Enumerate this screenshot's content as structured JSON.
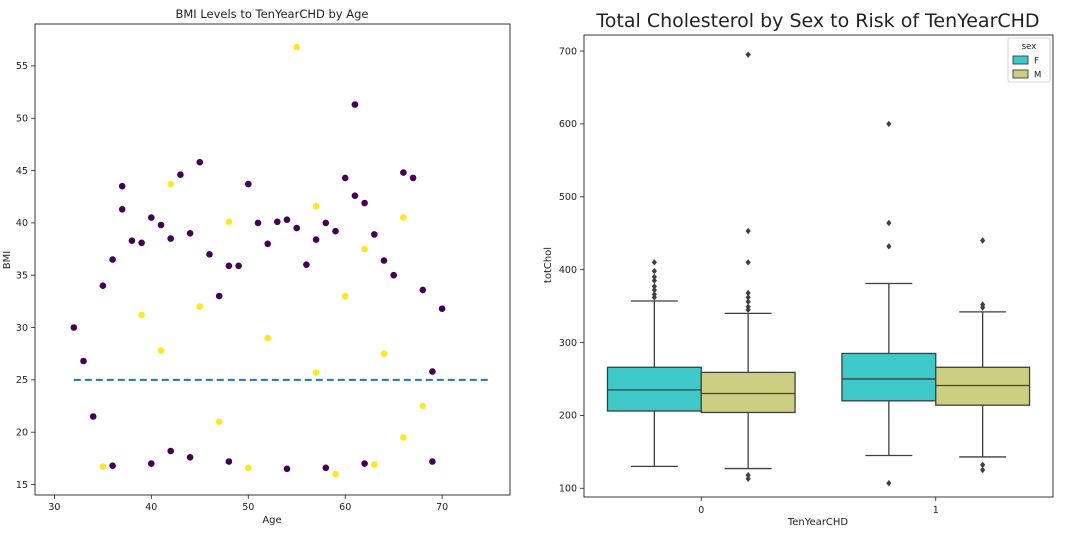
{
  "chart_data": [
    {
      "type": "scatter",
      "title": "BMI Levels to TenYearCHD by Age",
      "xlabel": "Age",
      "ylabel": "BMI",
      "xlim": [
        28,
        77
      ],
      "ylim": [
        14,
        59
      ],
      "xticks": [
        30,
        40,
        50,
        60,
        70
      ],
      "yticks": [
        15,
        20,
        25,
        30,
        35,
        40,
        45,
        50,
        55
      ],
      "grid": false,
      "reference_line": {
        "y": 25,
        "x_range": [
          32,
          75
        ],
        "style": "dashed",
        "color": "#1f77b4"
      },
      "series": [
        {
          "color": "#440154",
          "points": [
            [
              32,
              30.0
            ],
            [
              33,
              26.8
            ],
            [
              34,
              21.5
            ],
            [
              35,
              34.0
            ],
            [
              36,
              36.5
            ],
            [
              37,
              43.5
            ],
            [
              37,
              41.3
            ],
            [
              38,
              38.3
            ],
            [
              39,
              38.1
            ],
            [
              40,
              40.5
            ],
            [
              40,
              17.0
            ],
            [
              41,
              39.8
            ],
            [
              42,
              38.5
            ],
            [
              43,
              44.6
            ],
            [
              44,
              39.0
            ],
            [
              45,
              45.8
            ],
            [
              44,
              17.6
            ],
            [
              46,
              37.0
            ],
            [
              47,
              33.0
            ],
            [
              48,
              35.9
            ],
            [
              49,
              35.9
            ],
            [
              50,
              43.7
            ],
            [
              51,
              40.0
            ],
            [
              52,
              38.0
            ],
            [
              53,
              40.1
            ],
            [
              54,
              40.3
            ],
            [
              54,
              16.5
            ],
            [
              55,
              39.5
            ],
            [
              56,
              36.0
            ],
            [
              57,
              38.4
            ],
            [
              58,
              40.0
            ],
            [
              59,
              39.2
            ],
            [
              60,
              44.3
            ],
            [
              61,
              51.3
            ],
            [
              61,
              42.6
            ],
            [
              62,
              41.9
            ],
            [
              63,
              38.9
            ],
            [
              64,
              36.4
            ],
            [
              65,
              35.0
            ],
            [
              66,
              44.8
            ],
            [
              67,
              44.3
            ],
            [
              68,
              33.6
            ],
            [
              69,
              17.2
            ],
            [
              70,
              31.8
            ],
            [
              69,
              25.8
            ],
            [
              62,
              17.0
            ],
            [
              48,
              17.2
            ],
            [
              58,
              16.6
            ],
            [
              36,
              16.8
            ],
            [
              42,
              18.2
            ]
          ]
        },
        {
          "color": "#fde725",
          "points": [
            [
              35,
              16.7
            ],
            [
              39,
              31.2
            ],
            [
              42,
              43.7
            ],
            [
              48,
              40.1
            ],
            [
              50,
              16.6
            ],
            [
              55,
              56.8
            ],
            [
              57,
              41.6
            ],
            [
              59,
              16.0
            ],
            [
              62,
              37.5
            ],
            [
              63,
              16.9
            ],
            [
              66,
              40.5
            ],
            [
              68,
              22.5
            ],
            [
              66,
              19.5
            ],
            [
              45,
              32.0
            ],
            [
              52,
              29.0
            ],
            [
              57,
              25.7
            ],
            [
              60,
              33.0
            ],
            [
              64,
              27.5
            ],
            [
              47,
              21.0
            ],
            [
              41,
              27.8
            ]
          ]
        }
      ]
    },
    {
      "type": "box",
      "title": "Total Cholesterol by Sex to Risk of TenYearCHD",
      "xlabel": "TenYearCHD",
      "ylabel": "totChol",
      "categories": [
        "0",
        "1"
      ],
      "ylim": [
        88,
        722
      ],
      "yticks": [
        100,
        200,
        300,
        400,
        500,
        600,
        700
      ],
      "legend": {
        "title": "sex",
        "placement": "top-right"
      },
      "series": [
        {
          "name": "F",
          "color": "#3ec8c8",
          "boxes": [
            {
              "whisker_low": 130,
              "q1": 206,
              "median": 235,
              "q3": 266,
              "whisker_high": 357,
              "outliers": [
                362,
                366,
                372,
                377,
                385,
                390,
                398,
                410
              ]
            },
            {
              "whisker_low": 145,
              "q1": 220,
              "median": 250,
              "q3": 285,
              "whisker_high": 381,
              "outliers": [
                107,
                432,
                464,
                600
              ]
            }
          ]
        },
        {
          "name": "M",
          "color": "#cccf82",
          "boxes": [
            {
              "whisker_low": 127,
              "q1": 204,
              "median": 230,
              "q3": 259,
              "whisker_high": 340,
              "outliers": [
                113,
                118,
                345,
                349,
                356,
                362,
                368,
                410,
                453,
                695
              ]
            },
            {
              "whisker_low": 143,
              "q1": 214,
              "median": 241,
              "q3": 266,
              "whisker_high": 342,
              "outliers": [
                125,
                132,
                348,
                352,
                440
              ]
            }
          ]
        }
      ]
    }
  ]
}
